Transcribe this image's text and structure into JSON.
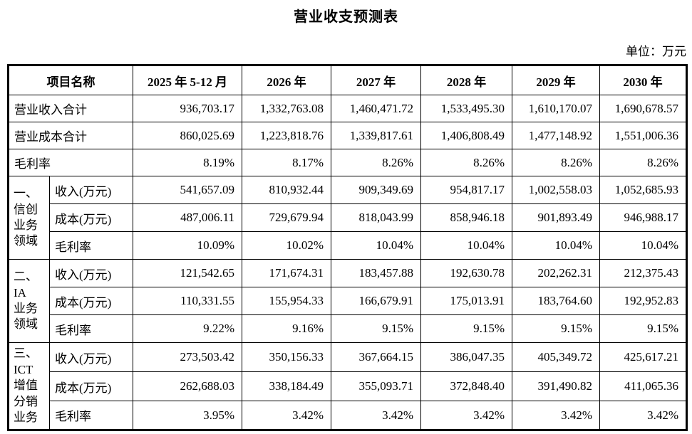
{
  "page": {
    "title": "营业收支预测表",
    "unit_label": "单位：万元"
  },
  "table": {
    "columns": [
      "项目名称",
      "2025 年 5-12 月",
      "2026 年",
      "2027 年",
      "2028 年",
      "2029 年",
      "2030 年"
    ],
    "summary_rows": [
      {
        "label": "营业收入合计",
        "values": [
          "936,703.17",
          "1,332,763.08",
          "1,460,471.72",
          "1,533,495.30",
          "1,610,170.07",
          "1,690,678.57"
        ]
      },
      {
        "label": "营业成本合计",
        "values": [
          "860,025.69",
          "1,223,818.76",
          "1,339,817.61",
          "1,406,808.49",
          "1,477,148.92",
          "1,551,006.36"
        ]
      },
      {
        "label": "毛利率",
        "values": [
          "8.19%",
          "8.17%",
          "8.26%",
          "8.26%",
          "8.26%",
          "8.26%"
        ]
      }
    ],
    "sections": [
      {
        "group_label": "一、\n信创\n业务\n领域",
        "rows": [
          {
            "label": "收入(万元)",
            "values": [
              "541,657.09",
              "810,932.44",
              "909,349.69",
              "954,817.17",
              "1,002,558.03",
              "1,052,685.93"
            ]
          },
          {
            "label": "成本(万元)",
            "values": [
              "487,006.11",
              "729,679.94",
              "818,043.99",
              "858,946.18",
              "901,893.49",
              "946,988.17"
            ]
          },
          {
            "label": "毛利率",
            "values": [
              "10.09%",
              "10.02%",
              "10.04%",
              "10.04%",
              "10.04%",
              "10.04%"
            ]
          }
        ]
      },
      {
        "group_label": "二、\nIA\n业务\n领域",
        "rows": [
          {
            "label": "收入(万元)",
            "values": [
              "121,542.65",
              "171,674.31",
              "183,457.88",
              "192,630.78",
              "202,262.31",
              "212,375.43"
            ]
          },
          {
            "label": "成本(万元)",
            "values": [
              "110,331.55",
              "155,954.33",
              "166,679.91",
              "175,013.91",
              "183,764.60",
              "192,952.83"
            ]
          },
          {
            "label": "毛利率",
            "values": [
              "9.22%",
              "9.16%",
              "9.15%",
              "9.15%",
              "9.15%",
              "9.15%"
            ]
          }
        ]
      },
      {
        "group_label": "三、\nICT\n增值\n分销\n业务",
        "rows": [
          {
            "label": "收入(万元)",
            "values": [
              "273,503.42",
              "350,156.33",
              "367,664.15",
              "386,047.35",
              "405,349.72",
              "425,617.21"
            ]
          },
          {
            "label": "成本(万元)",
            "values": [
              "262,688.03",
              "338,184.49",
              "355,093.71",
              "372,848.40",
              "391,490.82",
              "411,065.36"
            ]
          },
          {
            "label": "毛利率",
            "values": [
              "3.95%",
              "3.42%",
              "3.42%",
              "3.42%",
              "3.42%",
              "3.42%"
            ]
          }
        ]
      }
    ]
  }
}
